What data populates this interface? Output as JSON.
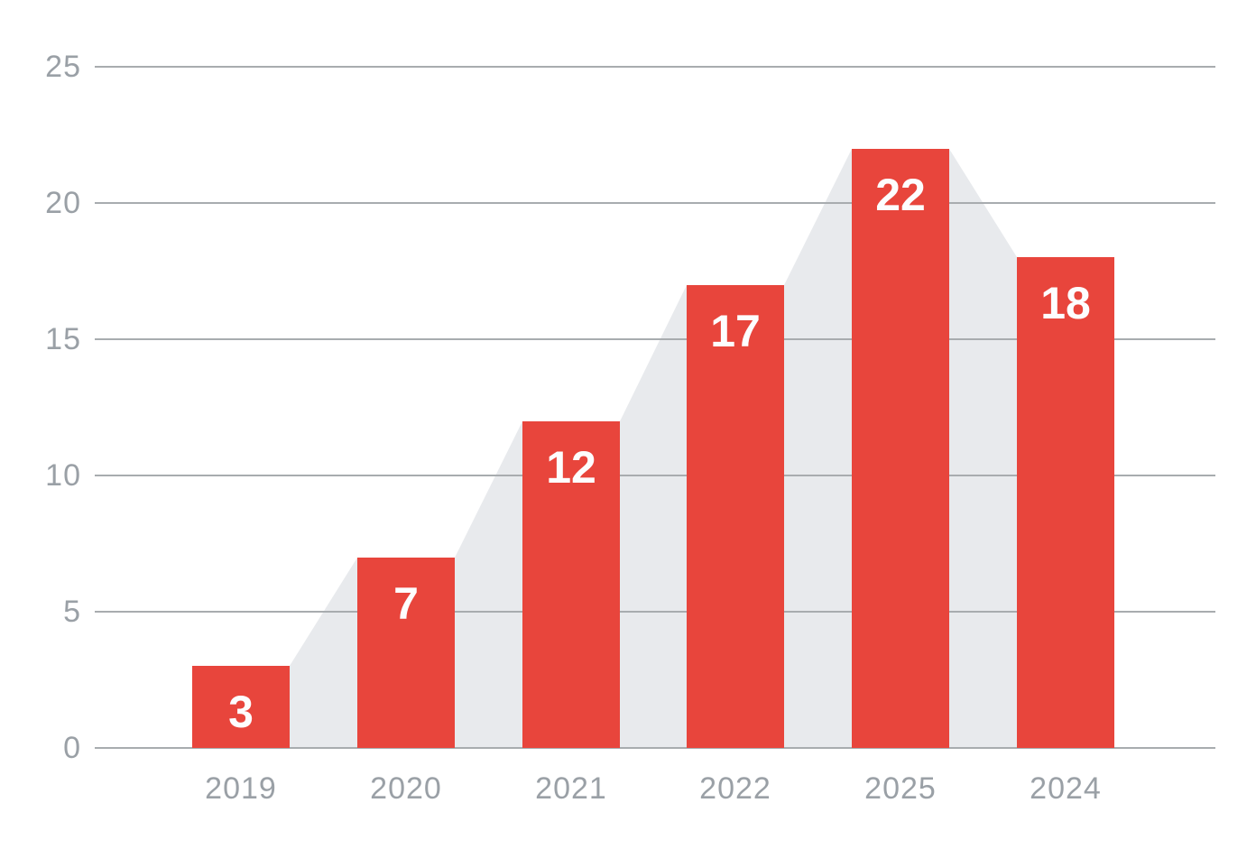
{
  "chart_data": {
    "type": "bar",
    "title": "",
    "xlabel": "",
    "ylabel": "",
    "categories": [
      "2019",
      "2020",
      "2021",
      "2022",
      "2025",
      "2024"
    ],
    "values": [
      3,
      7,
      12,
      17,
      22,
      18
    ],
    "series": [
      {
        "name": "bars",
        "type": "bar",
        "values": [
          3,
          7,
          12,
          17,
          22,
          18
        ]
      },
      {
        "name": "backdrop",
        "type": "area",
        "values": [
          3,
          7,
          12,
          17,
          22,
          18
        ]
      }
    ],
    "ylim": [
      0,
      25
    ],
    "y_ticks": [
      0,
      5,
      10,
      15,
      20,
      25
    ],
    "grid": "horizontal",
    "legend": "none",
    "colors": {
      "bar": "#e8453c",
      "area": "#e8eaed",
      "gridline": "#a8acaf",
      "axis_label": "#9aa0a6",
      "bar_label": "#fdfdfe",
      "background": "#ffffff"
    }
  }
}
